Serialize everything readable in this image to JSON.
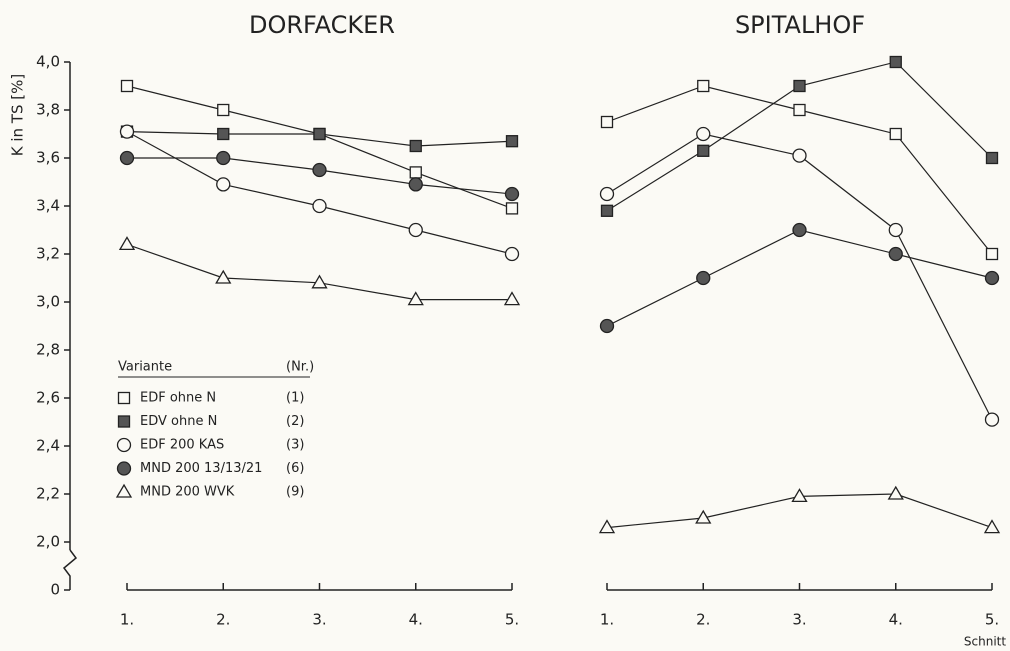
{
  "chart_data": [
    {
      "type": "line",
      "title": "DORFACKER",
      "y_label": "K in TS [%]",
      "categories": [
        "1.",
        "2.",
        "3.",
        "4.",
        "5."
      ],
      "ylim": [
        2.0,
        4.0
      ],
      "axis_break": true,
      "yticks": [
        {
          "value": 0,
          "label": "0"
        },
        {
          "value": 2.0,
          "label": "2,0"
        },
        {
          "value": 2.2,
          "label": "2,2"
        },
        {
          "value": 2.4,
          "label": "2,4"
        },
        {
          "value": 2.6,
          "label": "2,6"
        },
        {
          "value": 2.8,
          "label": "2,8"
        },
        {
          "value": 3.0,
          "label": "3,0"
        },
        {
          "value": 3.2,
          "label": "3,2"
        },
        {
          "value": 3.4,
          "label": "3,4"
        },
        {
          "value": 3.6,
          "label": "3,6"
        },
        {
          "value": 3.8,
          "label": "3,8"
        },
        {
          "value": 4.0,
          "label": "4,0"
        }
      ],
      "legend": {
        "title": "Variante",
        "nr_title": "(Nr.)",
        "corner": "lower-left"
      },
      "series": [
        {
          "name": "EDF ohne N",
          "nr": "(1)",
          "marker": "square",
          "color": "#222",
          "values": [
            3.9,
            3.8,
            3.7,
            3.54,
            3.39
          ]
        },
        {
          "name": "EDV ohne N",
          "nr": "(2)",
          "marker": "square-filled",
          "color": "#222",
          "values": [
            3.71,
            3.7,
            3.7,
            3.65,
            3.67
          ]
        },
        {
          "name": "EDF 200 KAS",
          "nr": "(3)",
          "marker": "circle",
          "color": "#222",
          "values": [
            3.71,
            3.49,
            3.4,
            3.3,
            3.2
          ]
        },
        {
          "name": "MND 200 13/13/21",
          "nr": "(6)",
          "marker": "circle-filled",
          "color": "#222",
          "values": [
            3.6,
            3.6,
            3.55,
            3.49,
            3.45
          ]
        },
        {
          "name": "MND 200 WVK",
          "nr": "(9)",
          "marker": "triangle",
          "color": "#222",
          "values": [
            3.24,
            3.1,
            3.08,
            3.01,
            3.01
          ]
        }
      ]
    },
    {
      "type": "line",
      "title": "SPITALHOF",
      "x_label": "Schnitt",
      "categories": [
        "1.",
        "2.",
        "3.",
        "4.",
        "5."
      ],
      "ylim": [
        2.0,
        4.0
      ],
      "series": [
        {
          "marker": "square",
          "color": "#222",
          "values": [
            3.75,
            3.9,
            3.8,
            3.7,
            3.2
          ]
        },
        {
          "marker": "square-filled",
          "color": "#222",
          "values": [
            3.38,
            3.63,
            3.9,
            4.0,
            3.6
          ]
        },
        {
          "marker": "circle",
          "color": "#222",
          "values": [
            3.45,
            3.7,
            3.61,
            3.3,
            2.51
          ]
        },
        {
          "marker": "circle-filled",
          "color": "#222",
          "values": [
            2.9,
            3.1,
            3.3,
            3.2,
            3.1
          ]
        },
        {
          "marker": "triangle",
          "color": "#222",
          "values": [
            2.06,
            2.1,
            2.19,
            2.2,
            2.06
          ]
        }
      ]
    }
  ]
}
